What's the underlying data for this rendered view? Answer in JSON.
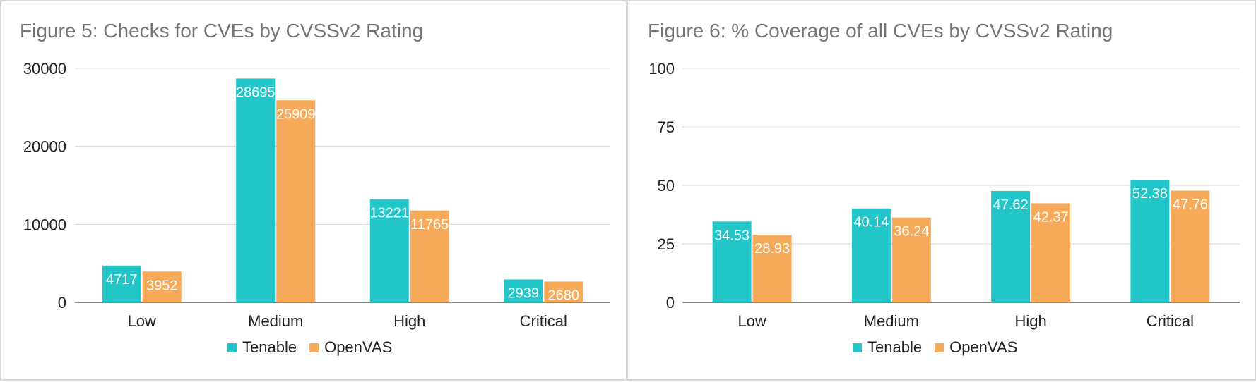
{
  "chart_data": [
    {
      "type": "bar",
      "title": "Figure 5: Checks for CVEs by CVSSv2 Rating",
      "categories": [
        "Low",
        "Medium",
        "High",
        "Critical"
      ],
      "series": [
        {
          "name": "Tenable",
          "values": [
            4717,
            28695,
            13221,
            2939
          ]
        },
        {
          "name": "OpenVAS",
          "values": [
            3952,
            25909,
            11765,
            2680
          ]
        }
      ],
      "ylim": [
        0,
        30000
      ],
      "yticks": [
        0,
        10000,
        20000,
        30000
      ],
      "grid": true,
      "legend": "bottom",
      "xlabel": "",
      "ylabel": ""
    },
    {
      "type": "bar",
      "title": "Figure 6: % Coverage of all CVEs by CVSSv2 Rating",
      "categories": [
        "Low",
        "Medium",
        "High",
        "Critical"
      ],
      "series": [
        {
          "name": "Tenable",
          "values": [
            34.53,
            40.14,
            47.62,
            52.38
          ]
        },
        {
          "name": "OpenVAS",
          "values": [
            28.93,
            36.24,
            42.37,
            47.76
          ]
        }
      ],
      "ylim": [
        0,
        100
      ],
      "yticks": [
        0,
        25,
        50,
        75,
        100
      ],
      "grid": true,
      "legend": "bottom",
      "xlabel": "",
      "ylabel": ""
    }
  ],
  "colors": {
    "Tenable": "#22c6c8",
    "OpenVAS": "#f7ab5a",
    "grid": "#d9d9d9",
    "axis": "#666666",
    "text": "#222222"
  }
}
